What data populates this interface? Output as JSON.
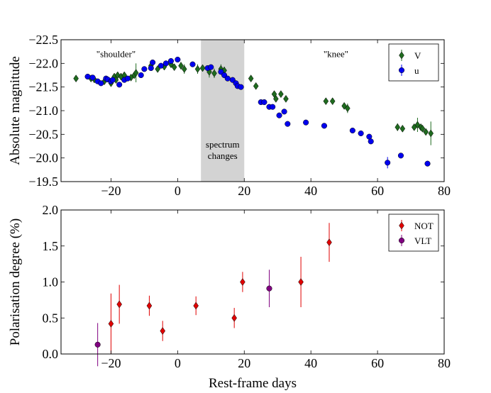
{
  "chart_data": [
    {
      "type": "scatter",
      "xlabel": "",
      "ylabel": "Absolute magnitude",
      "xlim": [
        -35,
        80
      ],
      "ylim": [
        -19.5,
        -22.5
      ],
      "y_inverted": true,
      "xticks": [
        -20,
        0,
        20,
        40,
        60,
        80
      ],
      "xtick_labels": [
        "−20",
        "0",
        "20",
        "40",
        "60",
        "80"
      ],
      "yticks": [
        -22.5,
        -22.0,
        -21.5,
        -21.0,
        -20.5,
        -20.0,
        -19.5
      ],
      "ytick_labels": [
        "−22.5",
        "−22.0",
        "−21.5",
        "−21.0",
        "−20.5",
        "−20.0",
        "−19.5"
      ],
      "shaded_region": {
        "x0": 7,
        "x1": 20,
        "label_line1": "spectrum",
        "label_line2": "changes"
      },
      "annotations": [
        {
          "text": "\"shoulder\"",
          "x": -18.5,
          "y": -22.4
        },
        {
          "text": "\"knee\"",
          "x": 47.5,
          "y": -22.4
        }
      ],
      "legend_position": "top-right",
      "series": [
        {
          "name": "V",
          "marker": "diamond",
          "color": "#1f6b1f",
          "points": [
            [
              -30.5,
              -21.68,
              0.04
            ],
            [
              -26,
              -21.68,
              0.04
            ],
            [
              -25,
              -21.66,
              0.04
            ],
            [
              -22,
              -21.62,
              0.05
            ],
            [
              -20,
              -21.58,
              0.05
            ],
            [
              -19,
              -21.72,
              0.06
            ],
            [
              -18.5,
              -21.65,
              0.05
            ],
            [
              -18,
              -21.75,
              0.05
            ],
            [
              -17,
              -21.72,
              0.05
            ],
            [
              -16,
              -21.75,
              0.05
            ],
            [
              -14,
              -21.7,
              0.05
            ],
            [
              -13,
              -21.75,
              0.05
            ],
            [
              -12.5,
              -21.8,
              0.2
            ],
            [
              -8,
              -21.95,
              0.06
            ],
            [
              -6,
              -21.88,
              0.05
            ],
            [
              -4,
              -21.93,
              0.05
            ],
            [
              -2,
              -21.98,
              0.05
            ],
            [
              -1,
              -21.92,
              0.05
            ],
            [
              1,
              -21.95,
              0.08
            ],
            [
              2,
              -21.88,
              0.1
            ],
            [
              6,
              -21.88,
              0.1
            ],
            [
              7.5,
              -21.9,
              0.05
            ],
            [
              9.5,
              -21.82,
              0.12
            ],
            [
              11,
              -21.79,
              0.1
            ],
            [
              13,
              -21.88,
              0.1
            ],
            [
              14,
              -21.85,
              0.08
            ],
            [
              22,
              -21.68,
              0.05
            ],
            [
              23.5,
              -21.52,
              0.05
            ],
            [
              29,
              -21.35,
              0.05
            ],
            [
              29.5,
              -21.25,
              0.05
            ],
            [
              31,
              -21.35,
              0.05
            ],
            [
              32.5,
              -21.25,
              0.05
            ],
            [
              44.5,
              -21.2,
              0.05
            ],
            [
              46.5,
              -21.2,
              0.05
            ],
            [
              50,
              -21.1,
              0.05
            ],
            [
              51,
              -21.05,
              0.1
            ],
            [
              66,
              -20.65,
              0.08
            ],
            [
              67.5,
              -20.62,
              0.05
            ],
            [
              71,
              -20.65,
              0.05
            ],
            [
              72,
              -20.7,
              0.15
            ],
            [
              73,
              -20.65,
              0.05
            ],
            [
              73.5,
              -20.62,
              0.05
            ],
            [
              74.5,
              -20.55,
              0.05
            ],
            [
              76,
              -20.52,
              0.25
            ]
          ]
        },
        {
          "name": "u",
          "marker": "circle",
          "color": "#0000ee",
          "points": [
            [
              -27,
              -21.72,
              0.03
            ],
            [
              -25.5,
              -21.7,
              0.03
            ],
            [
              -24,
              -21.62,
              0.03
            ],
            [
              -23,
              -21.58,
              0.03
            ],
            [
              -21.5,
              -21.68,
              0.03
            ],
            [
              -21,
              -21.66,
              0.03
            ],
            [
              -20,
              -21.62,
              0.03
            ],
            [
              -19.5,
              -21.65,
              0.03
            ],
            [
              -17.5,
              -21.55,
              0.03
            ],
            [
              -16,
              -21.65,
              0.03
            ],
            [
              -15,
              -21.68,
              0.03
            ],
            [
              -11,
              -21.75,
              0.03
            ],
            [
              -10,
              -21.88,
              0.03
            ],
            [
              -8,
              -21.9,
              0.03
            ],
            [
              -7.5,
              -22.02,
              0.03
            ],
            [
              -5,
              -21.95,
              0.03
            ],
            [
              -3.5,
              -22.0,
              0.03
            ],
            [
              -2,
              -22.05,
              0.03
            ],
            [
              0,
              -22.08,
              0.03
            ],
            [
              4.5,
              -21.98,
              0.03
            ],
            [
              9,
              -21.9,
              0.03
            ],
            [
              10,
              -21.92,
              0.03
            ],
            [
              13,
              -21.82,
              0.03
            ],
            [
              14,
              -21.75,
              0.03
            ],
            [
              15,
              -21.68,
              0.03
            ],
            [
              16.5,
              -21.65,
              0.03
            ],
            [
              17.5,
              -21.58,
              0.03
            ],
            [
              18,
              -21.52,
              0.03
            ],
            [
              19,
              -21.5,
              0.03
            ],
            [
              25,
              -21.18,
              0.03
            ],
            [
              26,
              -21.18,
              0.03
            ],
            [
              27.5,
              -21.08,
              0.03
            ],
            [
              28.5,
              -21.08,
              0.03
            ],
            [
              30.5,
              -20.9,
              0.05
            ],
            [
              32,
              -20.98,
              0.03
            ],
            [
              33,
              -20.72,
              0.03
            ],
            [
              38.5,
              -20.75,
              0.05
            ],
            [
              44,
              -20.68,
              0.05
            ],
            [
              52.5,
              -20.58,
              0.05
            ],
            [
              55,
              -20.52,
              0.03
            ],
            [
              57.5,
              -20.45,
              0.03
            ],
            [
              58,
              -20.35,
              0.03
            ],
            [
              63,
              -19.9,
              0.12
            ],
            [
              67,
              -20.05,
              0.05
            ],
            [
              75,
              -19.88,
              0.03
            ]
          ]
        }
      ]
    },
    {
      "type": "scatter",
      "xlabel": "Rest-frame days",
      "ylabel": "Polarisation degree (%)",
      "xlim": [
        -35,
        80
      ],
      "ylim": [
        0.0,
        2.0
      ],
      "xticks": [
        -20,
        0,
        20,
        40,
        60,
        80
      ],
      "xtick_labels": [
        "−20",
        "0",
        "20",
        "40",
        "60",
        "80"
      ],
      "yticks": [
        0.0,
        0.5,
        1.0,
        1.5,
        2.0
      ],
      "ytick_labels": [
        "0.0",
        "0.5",
        "1.0",
        "1.5",
        "2.0"
      ],
      "legend_position": "top-right",
      "series": [
        {
          "name": "NOT",
          "marker": "diamond",
          "color": "#e00000",
          "points": [
            [
              -20,
              0.42,
              0.42
            ],
            [
              -17.5,
              0.69,
              0.27
            ],
            [
              -8.5,
              0.67,
              0.14
            ],
            [
              -4.5,
              0.32,
              0.14
            ],
            [
              5.5,
              0.67,
              0.13
            ],
            [
              17,
              0.5,
              0.14
            ],
            [
              19.5,
              1.0,
              0.14
            ],
            [
              37,
              1.0,
              0.35
            ],
            [
              45.5,
              1.55,
              0.27
            ]
          ]
        },
        {
          "name": "VLT",
          "marker": "circle",
          "color": "#800080",
          "points": [
            [
              -24,
              0.13,
              0.3
            ],
            [
              27.5,
              0.91,
              0.26
            ]
          ]
        }
      ]
    }
  ]
}
